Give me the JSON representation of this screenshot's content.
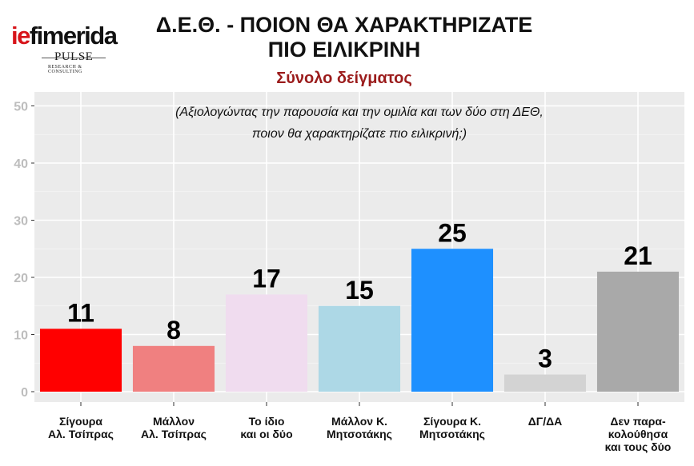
{
  "logo": {
    "brand_ie": "ie",
    "brand_rest": "fimerida",
    "pulse": "PULSE",
    "pulse_sub": "RESEARCH & CONSULTING"
  },
  "header": {
    "title_line1": "Δ.Ε.Θ. - ΠΟΙΟΝ ΘΑ ΧΑΡΑΚΤΗΡΙΖΑΤΕ",
    "title_line2": "ΠΙΟ ΕΙΛΙΚΡΙΝΗ",
    "subtitle": "Σύνολο δείγματος"
  },
  "chart_data": {
    "type": "bar",
    "annotation": [
      "(Αξιολογώντας την παρουσία και την ομιλία και των δύο στη ΔΕΘ,",
      "ποιον θα χαρακτηρίζατε πιο ειλικρινή;)"
    ],
    "categories": [
      [
        "Σίγουρα",
        "Αλ. Τσίπρας"
      ],
      [
        "Μάλλον",
        "Αλ. Τσίπρας"
      ],
      [
        "Το ίδιο",
        "και οι δύο"
      ],
      [
        "Μάλλον Κ.",
        "Μητσοτάκης"
      ],
      [
        "Σίγουρα Κ.",
        "Μητσοτάκης"
      ],
      [
        "ΔΓ/ΔΑ"
      ],
      [
        "Δεν παρα-",
        "κολούθησα",
        "και τους δύο"
      ]
    ],
    "values": [
      11,
      8,
      17,
      15,
      25,
      3,
      21
    ],
    "colors": [
      "#ff0000",
      "#f08080",
      "#f0dcef",
      "#add8e6",
      "#1e90ff",
      "#d3d3d3",
      "#a9a9a9"
    ],
    "ylim": [
      0,
      52
    ],
    "yticks": [
      0,
      10,
      20,
      30,
      40,
      50
    ],
    "grid": true,
    "panel_background": "#ebebeb",
    "xlabel": "",
    "ylabel": ""
  }
}
